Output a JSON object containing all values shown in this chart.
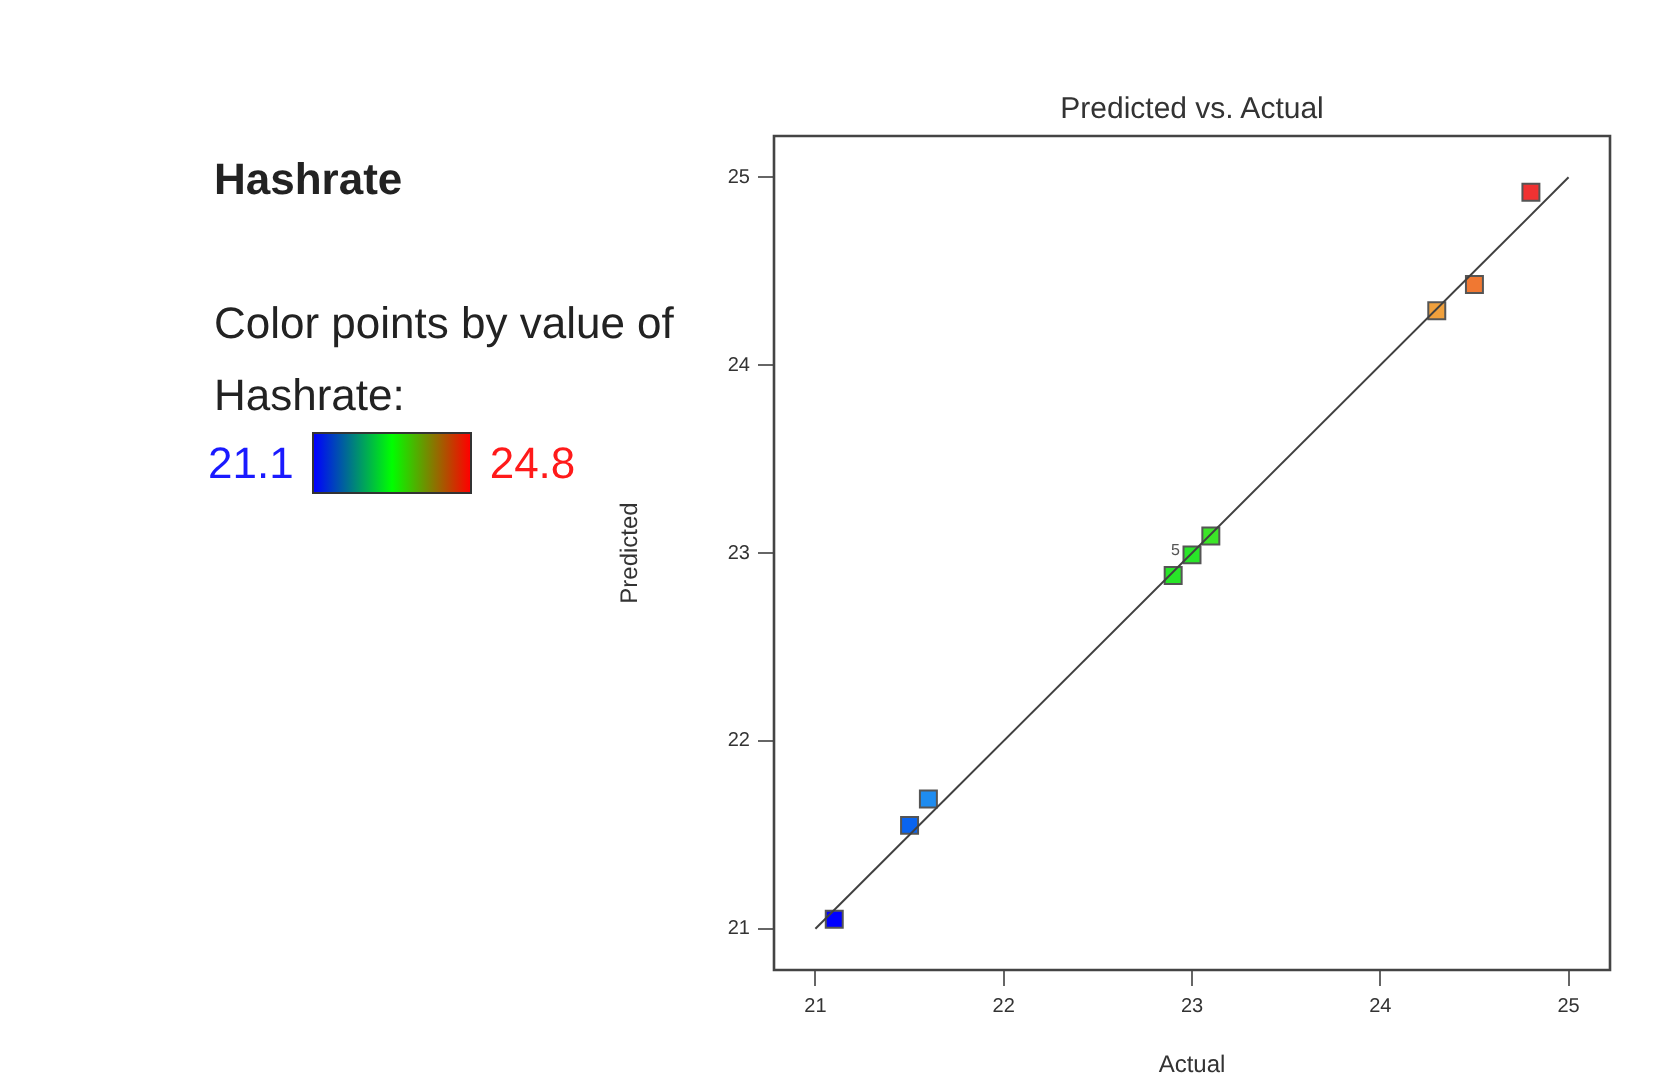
{
  "chart_data": {
    "type": "scatter",
    "title": "Predicted vs. Actual",
    "xlabel": "Actual",
    "ylabel": "Predicted",
    "clabel": "Color points by value of Hashrate:",
    "annotations": [
      "Hashrate",
      "21.1",
      "24.8",
      {
        "text": "5",
        "x": 23.0,
        "y": 22.99
      }
    ],
    "series": [
      {
        "type": "scatter",
        "x": [
          21.1,
          21.5,
          21.6,
          22.9,
          23.0,
          23.1,
          24.3,
          24.5,
          24.8
        ],
        "values": [
          21.05,
          21.55,
          21.69,
          22.88,
          22.99,
          23.09,
          24.29,
          24.43,
          24.92
        ],
        "colors": [
          "#0000ff",
          "#0a64f0",
          "#1e8cf0",
          "#28e628",
          "#28e628",
          "#3ce628",
          "#f0a03c",
          "#f07832",
          "#f03232"
        ],
        "marker": "square"
      },
      {
        "type": "line",
        "x": [
          21,
          25
        ],
        "values": [
          21,
          25
        ],
        "color": "#404040",
        "marker": "none"
      }
    ],
    "xlim": [
      20.78,
      25.22
    ],
    "ylim": [
      20.78,
      25.22
    ],
    "xticks": [
      21,
      22,
      23,
      24,
      25
    ],
    "yticks": [
      21,
      22,
      23,
      24,
      25
    ]
  }
}
